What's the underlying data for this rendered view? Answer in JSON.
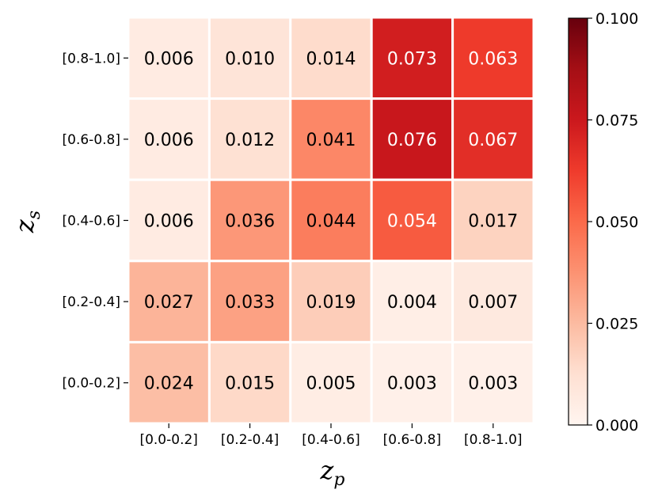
{
  "chart_data": {
    "type": "heatmap",
    "title": "",
    "xlabel": {
      "base": "z",
      "sub": "p"
    },
    "ylabel": {
      "base": "z",
      "sub": "s"
    },
    "x_categories": [
      "[0.0-0.2]",
      "[0.2-0.4]",
      "[0.4-0.6]",
      "[0.6-0.8]",
      "[0.8-1.0]"
    ],
    "y_categories_top_to_bottom": [
      "[0.8-1.0]",
      "[0.6-0.8]",
      "[0.4-0.6]",
      "[0.2-0.4]",
      "[0.0-0.2]"
    ],
    "values_top_to_bottom": [
      [
        "0.006",
        "0.010",
        "0.014",
        "0.073",
        "0.063"
      ],
      [
        "0.006",
        "0.012",
        "0.041",
        "0.076",
        "0.067"
      ],
      [
        "0.006",
        "0.036",
        "0.044",
        "0.054",
        "0.017"
      ],
      [
        "0.027",
        "0.033",
        "0.019",
        "0.004",
        "0.007"
      ],
      [
        "0.024",
        "0.015",
        "0.005",
        "0.003",
        "0.003"
      ]
    ],
    "colorbar": {
      "min": 0.0,
      "max": 0.1,
      "ticks": [
        "0.000",
        "0.025",
        "0.050",
        "0.075",
        "0.100"
      ],
      "colormap": "Reds"
    },
    "cell_border_color": "#ffffff"
  }
}
